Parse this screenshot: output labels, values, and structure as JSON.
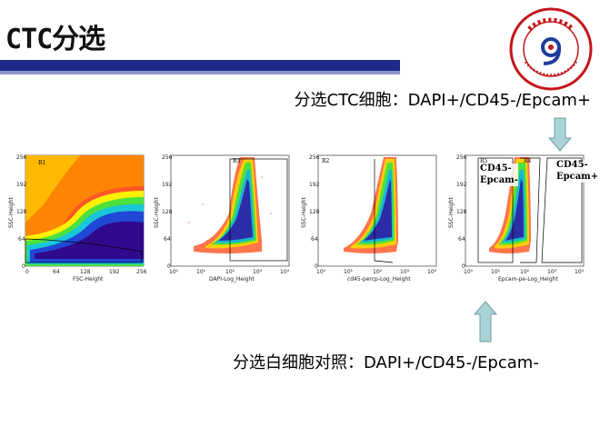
{
  "slide": {
    "title": "CTC分选",
    "caption_top": "分选CTC细胞：DAPI+/CD45-/Epcam+",
    "caption_bottom": "分选白细胞对照：DAPI+/CD45-/Epcam-",
    "logo_text": "福建省肿瘤医院 Fujian Provincial Cancer Hospital"
  },
  "colors": {
    "title_bar": "#1f2a8c",
    "arrow": "#a9d3d6",
    "arrow_stroke": "#6c9ea3"
  },
  "plots": [
    {
      "xlabel": "FSC-Height",
      "ylabel": "SSC-Height",
      "xticks": [
        "0",
        "64",
        "128",
        "192",
        "256"
      ],
      "yticks": [
        "0",
        "64",
        "128",
        "192",
        "256"
      ],
      "gate": "R1"
    },
    {
      "xlabel": "DAPI-Log_Height",
      "ylabel": "SSC-Height",
      "xticks": [
        "10⁰",
        "10¹",
        "10²",
        "10³",
        "10⁴"
      ],
      "yticks": [
        "0",
        "64",
        "128",
        "192",
        "256"
      ],
      "gate": "R3"
    },
    {
      "xlabel": "cd45-percp-Log_Height",
      "ylabel": "SSC-Height",
      "xticks": [
        "10⁰",
        "10¹",
        "10²",
        "10³",
        "10⁴"
      ],
      "yticks": [
        "0",
        "64",
        "128",
        "192",
        "256"
      ],
      "gate": "R2"
    },
    {
      "xlabel": "Epcam-pe-Log_Height",
      "ylabel": "SSC-Height",
      "xticks": [
        "10⁰",
        "10¹",
        "10²",
        "10³",
        "10⁴"
      ],
      "yticks": [
        "0",
        "64",
        "128",
        "192",
        "256"
      ],
      "gate": "R5",
      "gate2": "R4"
    }
  ],
  "annotations": {
    "left": "CD45-\nEpcam-",
    "right": "CD45-\nEpcam+"
  }
}
